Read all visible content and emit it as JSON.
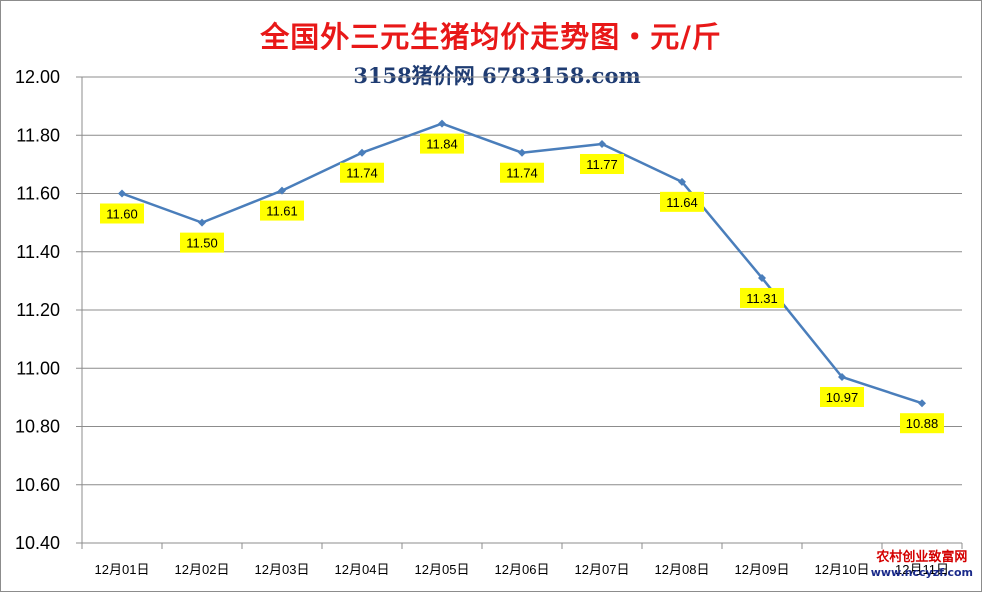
{
  "chart_data": {
    "type": "line",
    "title": "全国外三元生猪均价走势图・元/斤",
    "subtitle": "3158猪价网 6783158.com",
    "categories": [
      "12月01日",
      "12月02日",
      "12月03日",
      "12月04日",
      "12月05日",
      "12月06日",
      "12月07日",
      "12月08日",
      "12月09日",
      "12月10日",
      "12月11日"
    ],
    "series": [
      {
        "values": [
          11.6,
          11.5,
          11.61,
          11.74,
          11.84,
          11.74,
          11.77,
          11.64,
          11.31,
          10.97,
          10.88
        ]
      }
    ],
    "data_labels": [
      "11.60",
      "11.50",
      "11.61",
      "11.74",
      "11.84",
      "11.74",
      "11.77",
      "11.64",
      "11.31",
      "10.97",
      "10.88"
    ],
    "ylim": [
      10.4,
      12.0
    ],
    "yticks": [
      "12.00",
      "11.80",
      "11.60",
      "11.40",
      "11.20",
      "11.00",
      "10.80",
      "10.60",
      "10.40"
    ],
    "grid": true,
    "line_color": "#4a7ebb",
    "label_bg_color": "#ffff00"
  },
  "watermark": {
    "line1": "农村创业致富网",
    "line2": "www.nccyzf.com"
  },
  "colors": {
    "title": "#e81818",
    "subtitle": "#1f3c72"
  }
}
